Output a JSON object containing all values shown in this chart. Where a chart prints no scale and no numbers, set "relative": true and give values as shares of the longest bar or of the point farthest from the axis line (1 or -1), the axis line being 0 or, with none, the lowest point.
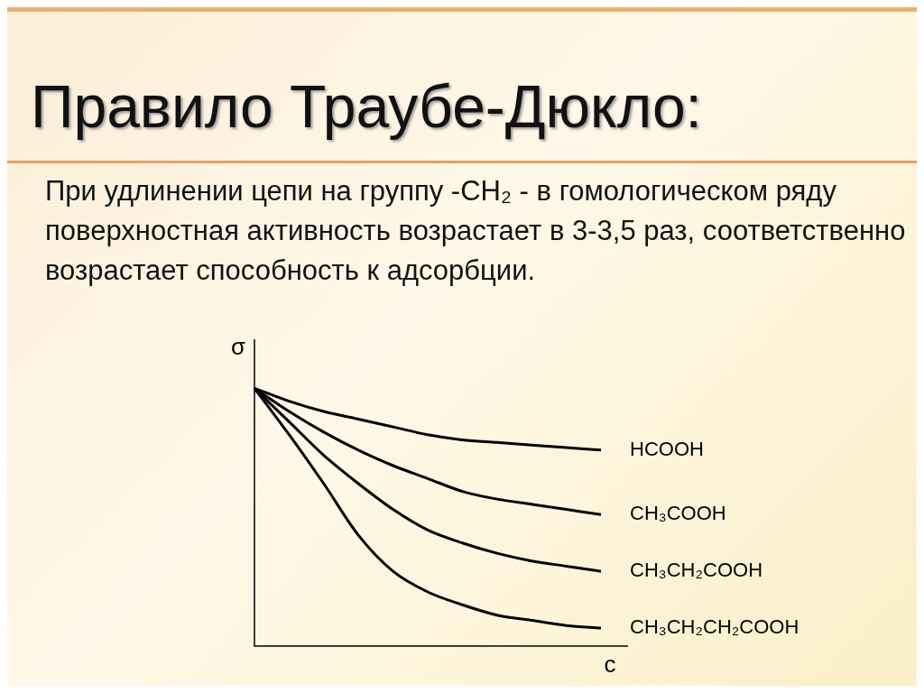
{
  "chart_data": {
    "type": "line",
    "title": "Правило Траубе-Дюкло:",
    "subtitle": "При удлинении цепи на группу -CH₂ - в гомологическом ряду поверхностная активность возрастает в 3-3,5 раз, соответственно возрастает способность к адсорбции.",
    "xlabel": "c",
    "ylabel": "σ",
    "relative": true,
    "legend": false,
    "marker": "none",
    "line_style": "solid",
    "categories": [
      null,
      null,
      null,
      null,
      null,
      null,
      null,
      null,
      null,
      null,
      null
    ],
    "series": [
      {
        "name": "HCOOH",
        "color": "#000000",
        "values": [
          1,
          0.95,
          0.91,
          0.88,
          0.85,
          0.82,
          0.8,
          0.79,
          0.78,
          0.77,
          0.76
        ]
      },
      {
        "name": "CH₃COOH",
        "color": "#000000",
        "values": [
          1,
          0.91,
          0.83,
          0.76,
          0.7,
          0.65,
          0.6,
          0.57,
          0.55,
          0.53,
          0.51
        ]
      },
      {
        "name": "CH₃CH₂COOH",
        "color": "#000000",
        "values": [
          1,
          0.87,
          0.74,
          0.63,
          0.53,
          0.45,
          0.4,
          0.36,
          0.33,
          0.31,
          0.29
        ]
      },
      {
        "name": "CH₃CH₂CH₂COOH",
        "color": "#000000",
        "values": [
          1,
          0.82,
          0.63,
          0.43,
          0.29,
          0.21,
          0.16,
          0.12,
          0.1,
          0.08,
          0.07
        ]
      }
    ]
  }
}
